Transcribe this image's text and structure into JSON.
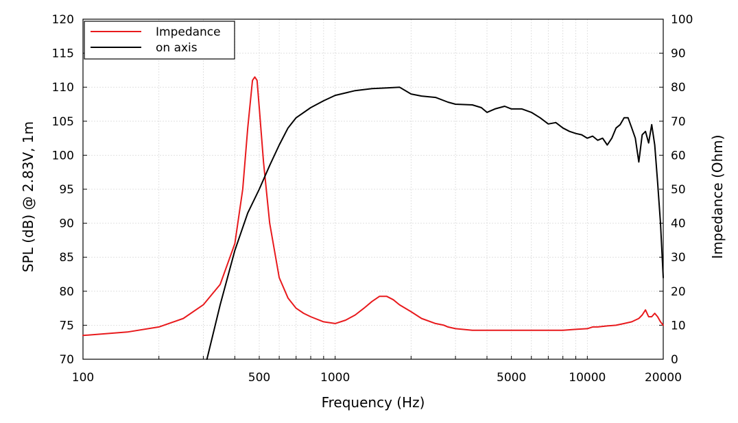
{
  "chart_data": {
    "type": "line",
    "title": "",
    "xlabel": "Frequency (Hz)",
    "ylabel": "SPL (dB) @ 2.83V, 1m",
    "ylabel_right": "Impedance (Ohm)",
    "x_scale": "log",
    "xlim": [
      100,
      20000
    ],
    "ylim": [
      70,
      120
    ],
    "ylim_right": [
      0,
      100
    ],
    "x_ticks": [
      100,
      500,
      1000,
      5000,
      10000,
      20000
    ],
    "x_tick_labels": [
      "100",
      "500",
      "1000",
      "5000",
      "10000",
      "20000"
    ],
    "y_ticks": [
      70,
      75,
      80,
      85,
      90,
      95,
      100,
      105,
      110,
      115,
      120
    ],
    "y_tick_labels": [
      "70",
      "75",
      "80",
      "85",
      "90",
      "95",
      "100",
      "105",
      "110",
      "115",
      "120"
    ],
    "y_right_ticks": [
      0,
      10,
      20,
      30,
      40,
      50,
      60,
      70,
      80,
      90,
      100
    ],
    "y_right_tick_labels": [
      "0",
      "10",
      "20",
      "30",
      "40",
      "50",
      "60",
      "70",
      "80",
      "90",
      "100"
    ],
    "grid": true,
    "legend_position": "top-left",
    "series": [
      {
        "name": "Impedance",
        "color": "#e8191c",
        "axis": "right",
        "x": [
          100,
          150,
          200,
          250,
          300,
          350,
          400,
          430,
          450,
          470,
          480,
          490,
          500,
          520,
          550,
          600,
          650,
          700,
          750,
          800,
          900,
          1000,
          1100,
          1200,
          1300,
          1400,
          1500,
          1600,
          1700,
          1800,
          2000,
          2200,
          2500,
          2700,
          2800,
          3000,
          3500,
          4000,
          5000,
          6000,
          7000,
          8000,
          9000,
          10000,
          10500,
          11000,
          12000,
          13000,
          14000,
          15000,
          16000,
          16500,
          17000,
          17500,
          18000,
          18500,
          19000,
          19500,
          20000
        ],
        "values": [
          7,
          8,
          9.5,
          12,
          16,
          22,
          34,
          50,
          68,
          82,
          83,
          82,
          74,
          58,
          40,
          24,
          18,
          15,
          13.5,
          12.5,
          11,
          10.5,
          11.5,
          13,
          15,
          17,
          18.5,
          18.5,
          17.5,
          16,
          14,
          12,
          10.5,
          10,
          9.5,
          9,
          8.5,
          8.5,
          8.5,
          8.5,
          8.5,
          8.5,
          8.8,
          9,
          9.5,
          9.5,
          9.8,
          10,
          10.5,
          11,
          12,
          13,
          14.5,
          12.5,
          12.5,
          13.5,
          12.5,
          11,
          10
        ]
      },
      {
        "name": "on axis",
        "color": "#000000",
        "axis": "left",
        "x": [
          310,
          350,
          400,
          450,
          500,
          550,
          600,
          650,
          700,
          800,
          900,
          1000,
          1200,
          1400,
          1600,
          1800,
          2000,
          2200,
          2500,
          2800,
          3000,
          3500,
          3800,
          4000,
          4300,
          4700,
          5000,
          5500,
          6000,
          6500,
          7000,
          7500,
          8000,
          8500,
          9000,
          9500,
          10000,
          10500,
          11000,
          11500,
          12000,
          12500,
          13000,
          13500,
          14000,
          14500,
          15000,
          15500,
          16000,
          16500,
          17000,
          17500,
          18000,
          18500,
          19000,
          19500,
          20000
        ],
        "values": [
          70,
          78,
          86,
          91.5,
          95,
          98.5,
          101.5,
          104,
          105.5,
          107,
          108,
          108.8,
          109.5,
          109.8,
          109.9,
          110,
          109,
          108.7,
          108.5,
          107.8,
          107.5,
          107.4,
          107,
          106.3,
          106.8,
          107.2,
          106.8,
          106.8,
          106.3,
          105.5,
          104.6,
          104.8,
          104,
          103.5,
          103.2,
          103,
          102.5,
          102.8,
          102.2,
          102.5,
          101.5,
          102.5,
          104,
          104.5,
          105.5,
          105.5,
          104,
          102.5,
          99,
          103,
          103.5,
          101.8,
          104.5,
          101.5,
          96,
          90,
          82
        ]
      }
    ]
  }
}
